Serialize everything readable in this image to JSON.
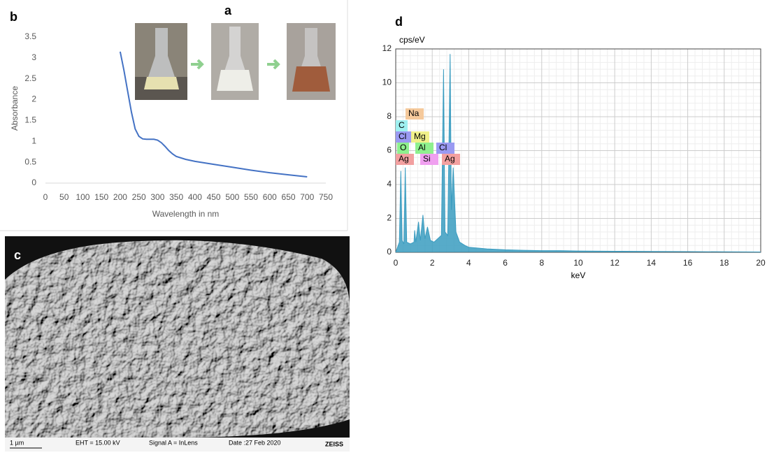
{
  "panels": {
    "a": "a",
    "b": "b",
    "c": "c",
    "d": "d"
  },
  "sem_info": {
    "scale": "1 µm",
    "eht": "EHT = 15.00 kV",
    "signal": "Signal A = InLens",
    "date": "Date :27 Feb 2020",
    "brand": "ZEISS"
  },
  "chart_data": [
    {
      "type": "line",
      "xlabel": "Wavelength in nm",
      "ylabel": "Absorbance",
      "x": [
        200,
        210,
        220,
        230,
        240,
        250,
        260,
        270,
        280,
        290,
        300,
        310,
        320,
        330,
        340,
        350,
        375,
        400,
        450,
        500,
        550,
        600,
        650,
        700
      ],
      "values": [
        3.15,
        2.7,
        2.2,
        1.7,
        1.3,
        1.12,
        1.06,
        1.05,
        1.05,
        1.05,
        1.03,
        0.97,
        0.88,
        0.78,
        0.7,
        0.64,
        0.57,
        0.52,
        0.45,
        0.38,
        0.31,
        0.25,
        0.2,
        0.15
      ],
      "color": "#4472c4",
      "xlim": [
        0,
        750
      ],
      "xticks": [
        0,
        50,
        100,
        150,
        200,
        250,
        300,
        350,
        400,
        450,
        500,
        550,
        600,
        650,
        700,
        750
      ],
      "ylim": [
        0,
        3.5
      ],
      "yticks": [
        0,
        0.5,
        1,
        1.5,
        2,
        2.5,
        3,
        3.5
      ],
      "grid": false
    },
    {
      "type": "area",
      "xlabel": "keV",
      "ylabel": "cps/eV",
      "x": [
        0,
        0.1,
        0.2,
        0.28,
        0.35,
        0.45,
        0.52,
        0.6,
        0.8,
        1.0,
        1.04,
        1.1,
        1.25,
        1.35,
        1.49,
        1.6,
        1.74,
        1.9,
        2.1,
        2.3,
        2.5,
        2.62,
        2.7,
        2.85,
        2.98,
        3.05,
        3.15,
        3.3,
        3.5,
        3.8,
        4,
        5,
        6,
        7,
        8,
        9,
        10,
        12,
        14,
        16,
        18,
        20
      ],
      "values": [
        0,
        0.3,
        0.6,
        4.8,
        0.7,
        0.5,
        5.0,
        0.6,
        0.5,
        0.6,
        1.3,
        0.6,
        1.8,
        0.7,
        2.2,
        0.8,
        1.5,
        0.7,
        0.6,
        0.8,
        1.0,
        10.8,
        1.2,
        1.0,
        11.7,
        2.5,
        5.0,
        1.2,
        0.6,
        0.4,
        0.3,
        0.2,
        0.15,
        0.12,
        0.1,
        0.1,
        0.08,
        0.06,
        0.05,
        0.04,
        0.03,
        0.02
      ],
      "color": "#3a9cc0",
      "xlim": [
        0,
        20
      ],
      "xticks": [
        0,
        2,
        4,
        6,
        8,
        10,
        12,
        14,
        16,
        18,
        20
      ],
      "ylim": [
        0,
        12
      ],
      "yticks": [
        0,
        2,
        4,
        6,
        8,
        10,
        12
      ],
      "grid": true,
      "annotations": [
        {
          "text": "Na",
          "color": "#f5c99b"
        },
        {
          "text": "C",
          "color": "#9ff0f0"
        },
        {
          "text": "Cl",
          "color": "#9a9af2"
        },
        {
          "text": "Mg",
          "color": "#f0f08a"
        },
        {
          "text": "O",
          "color": "#8ef08e"
        },
        {
          "text": "Al",
          "color": "#8ef08e"
        },
        {
          "text": "Cl",
          "color": "#9a9af2"
        },
        {
          "text": "Ag",
          "color": "#f2a0a0"
        },
        {
          "text": "Si",
          "color": "#f0a0f0"
        },
        {
          "text": "Ag",
          "color": "#f2a0a0"
        }
      ]
    }
  ]
}
